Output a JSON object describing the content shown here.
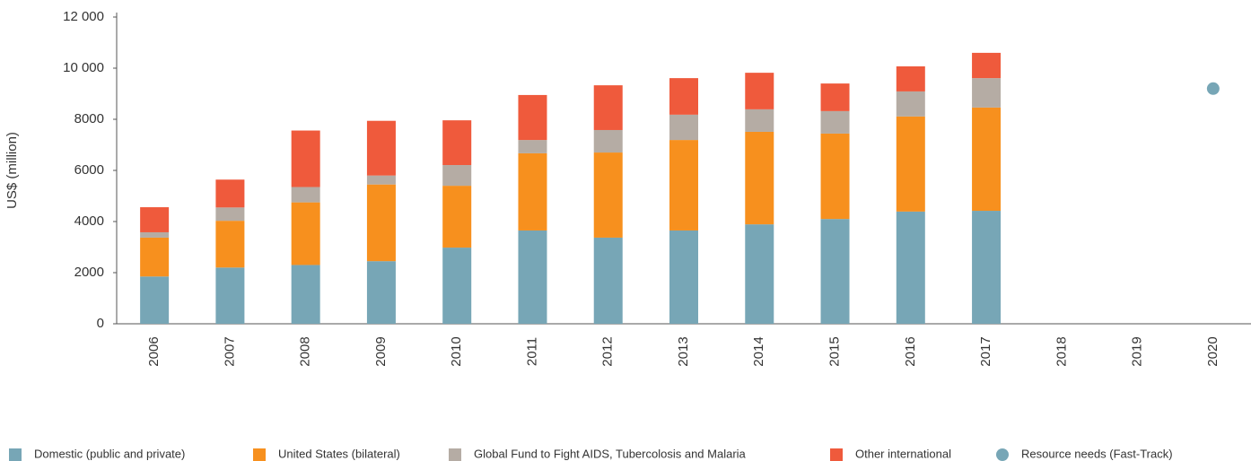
{
  "chart_data": {
    "type": "bar",
    "stacked": true,
    "y_label": "US$ (million)",
    "categories": [
      "2006",
      "2007",
      "2008",
      "2009",
      "2010",
      "2011",
      "2012",
      "2013",
      "2014",
      "2015",
      "2016",
      "2017",
      "2018",
      "2019",
      "2020"
    ],
    "series": [
      {
        "name": "Domestic (public and private)",
        "color": "#77a6b6",
        "values": [
          1850,
          2200,
          2300,
          2450,
          2980,
          3650,
          3370,
          3650,
          3890,
          4100,
          4390,
          4420,
          null,
          null,
          null
        ]
      },
      {
        "name": "United States (bilateral)",
        "color": "#f7901e",
        "values": [
          1520,
          1830,
          2450,
          3000,
          2420,
          3020,
          3330,
          3540,
          3620,
          3340,
          3720,
          4040,
          null,
          null,
          null
        ]
      },
      {
        "name": "Global Fund to Fight AIDS, Tubercolosis and Malaria",
        "color": "#b5aca4",
        "values": [
          210,
          520,
          600,
          350,
          810,
          520,
          880,
          990,
          880,
          880,
          980,
          1150,
          null,
          null,
          null
        ]
      },
      {
        "name": "Other international",
        "color": "#ef5a3c",
        "values": [
          980,
          1090,
          2210,
          2140,
          1750,
          1760,
          1750,
          1430,
          1430,
          1080,
          980,
          990,
          null,
          null,
          null
        ]
      },
      {
        "name": "Resource needs (Fast-Track)",
        "color": "#77a6b6",
        "type": "scatter",
        "values": [
          null,
          null,
          null,
          null,
          null,
          null,
          null,
          null,
          null,
          null,
          null,
          null,
          null,
          null,
          9200
        ]
      }
    ],
    "ylim": [
      0,
      12000
    ],
    "yticks": [
      0,
      2000,
      4000,
      6000,
      8000,
      {
        "value": 10000,
        "label": "10 000"
      },
      {
        "value": 12000,
        "label": "12 000"
      }
    ]
  }
}
